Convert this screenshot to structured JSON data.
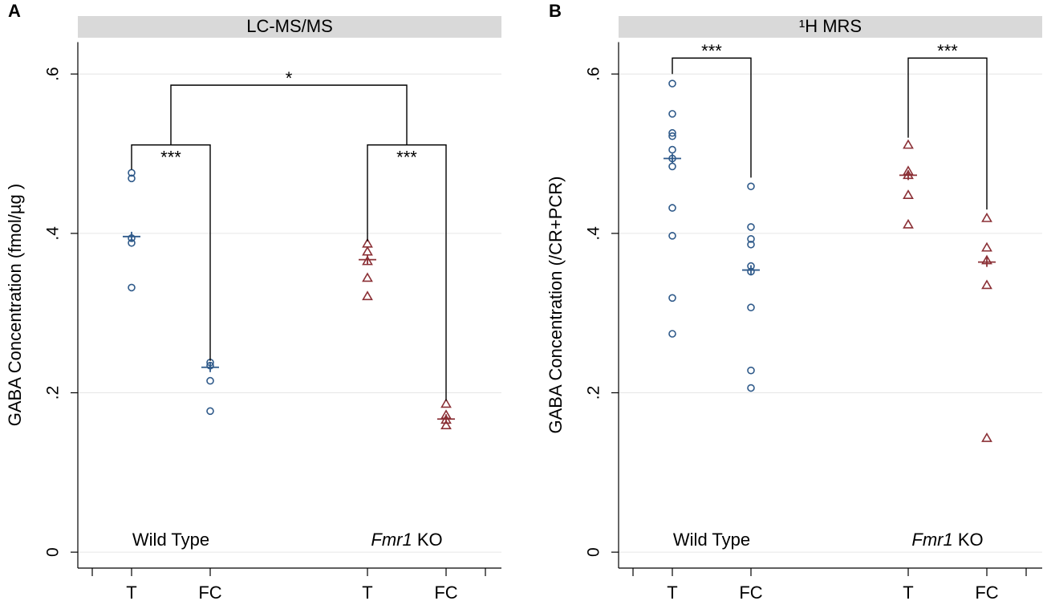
{
  "chart_data": [
    {
      "type": "scatter",
      "panel_label": "A",
      "title": "LC-MS/MS",
      "ylabel": "GABA Concentration (fmol/µg )",
      "xlim": [
        0.5,
        5.5
      ],
      "xticks": [
        {
          "value": 1,
          "label": "T"
        },
        {
          "value": 2,
          "label": "FC"
        },
        {
          "value": 4,
          "label": "T"
        },
        {
          "value": 5,
          "label": "FC"
        }
      ],
      "ylim": [
        -0.02,
        0.64
      ],
      "yticks": [
        0,
        {
          "value": 0.2,
          "label": ".2"
        },
        {
          "value": 0.4,
          "label": ".4"
        },
        {
          "value": 0.6,
          "label": ".6"
        }
      ],
      "grid": true,
      "groups": [
        {
          "name": "Wild Type"
        },
        {
          "italic": "Fmr1",
          "name": "KO"
        }
      ],
      "series": [
        {
          "marker": "circle",
          "color": "#2f5a8a",
          "x": 1,
          "values": [
            0.476,
            0.469,
            0.394,
            0.388,
            0.332
          ],
          "mean": 0.396
        },
        {
          "marker": "circle",
          "color": "#2f5a8a",
          "x": 2,
          "values": [
            0.238,
            0.234,
            0.215,
            0.177
          ],
          "mean": 0.232
        },
        {
          "marker": "triangle",
          "color": "#8b3036",
          "x": 4,
          "values": [
            0.387,
            0.377,
            0.365,
            0.344,
            0.321
          ],
          "mean": 0.367
        },
        {
          "marker": "triangle",
          "color": "#8b3036",
          "x": 5,
          "values": [
            0.186,
            0.172,
            0.166,
            0.159
          ],
          "mean": 0.167
        }
      ],
      "brackets": [
        {
          "label": "***",
          "label_side": "below",
          "x1": 1,
          "x2": 2,
          "y": 0.511,
          "y1": 0.48,
          "y2": 0.24
        },
        {
          "label": "***",
          "label_side": "below",
          "x1": 4,
          "x2": 5,
          "y": 0.511,
          "y1": 0.39,
          "y2": 0.19
        },
        {
          "label": "*",
          "label_side": "above",
          "x1": 1.5,
          "x2": 4.5,
          "y": 0.586,
          "y1": 0.511,
          "y2": 0.511
        }
      ]
    },
    {
      "type": "scatter",
      "panel_label": "B",
      "title": "¹H MRS",
      "ylabel": "GABA Concentration (/CR+PCR)",
      "xlim": [
        0.5,
        5.5
      ],
      "xticks": [
        {
          "value": 1,
          "label": "T"
        },
        {
          "value": 2,
          "label": "FC"
        },
        {
          "value": 4,
          "label": "T"
        },
        {
          "value": 5,
          "label": "FC"
        }
      ],
      "ylim": [
        -0.02,
        0.64
      ],
      "yticks": [
        0,
        {
          "value": 0.2,
          "label": ".2"
        },
        {
          "value": 0.4,
          "label": ".4"
        },
        {
          "value": 0.6,
          "label": ".6"
        }
      ],
      "grid": true,
      "groups": [
        {
          "name": "Wild Type"
        },
        {
          "italic": "Fmr1",
          "name": "KO"
        }
      ],
      "series": [
        {
          "marker": "circle",
          "color": "#2f5a8a",
          "x": 1,
          "values": [
            0.588,
            0.55,
            0.526,
            0.522,
            0.505,
            0.494,
            0.484,
            0.432,
            0.397,
            0.319,
            0.274
          ],
          "mean": 0.494
        },
        {
          "marker": "circle",
          "color": "#2f5a8a",
          "x": 2,
          "values": [
            0.459,
            0.408,
            0.393,
            0.386,
            0.359,
            0.352,
            0.307,
            0.228,
            0.206
          ],
          "mean": 0.354
        },
        {
          "marker": "triangle",
          "color": "#8b3036",
          "x": 4,
          "values": [
            0.511,
            0.478,
            0.473,
            0.448,
            0.411
          ],
          "mean": 0.473
        },
        {
          "marker": "triangle",
          "color": "#8b3036",
          "x": 5,
          "values": [
            0.419,
            0.382,
            0.366,
            0.335,
            0.143
          ],
          "mean": 0.364
        }
      ],
      "brackets": [
        {
          "label": "***",
          "label_side": "above",
          "x1": 1,
          "x2": 2,
          "y": 0.62,
          "y1": 0.6,
          "y2": 0.47
        },
        {
          "label": "***",
          "label_side": "above",
          "x1": 4,
          "x2": 5,
          "y": 0.62,
          "y1": 0.52,
          "y2": 0.43
        }
      ]
    }
  ]
}
